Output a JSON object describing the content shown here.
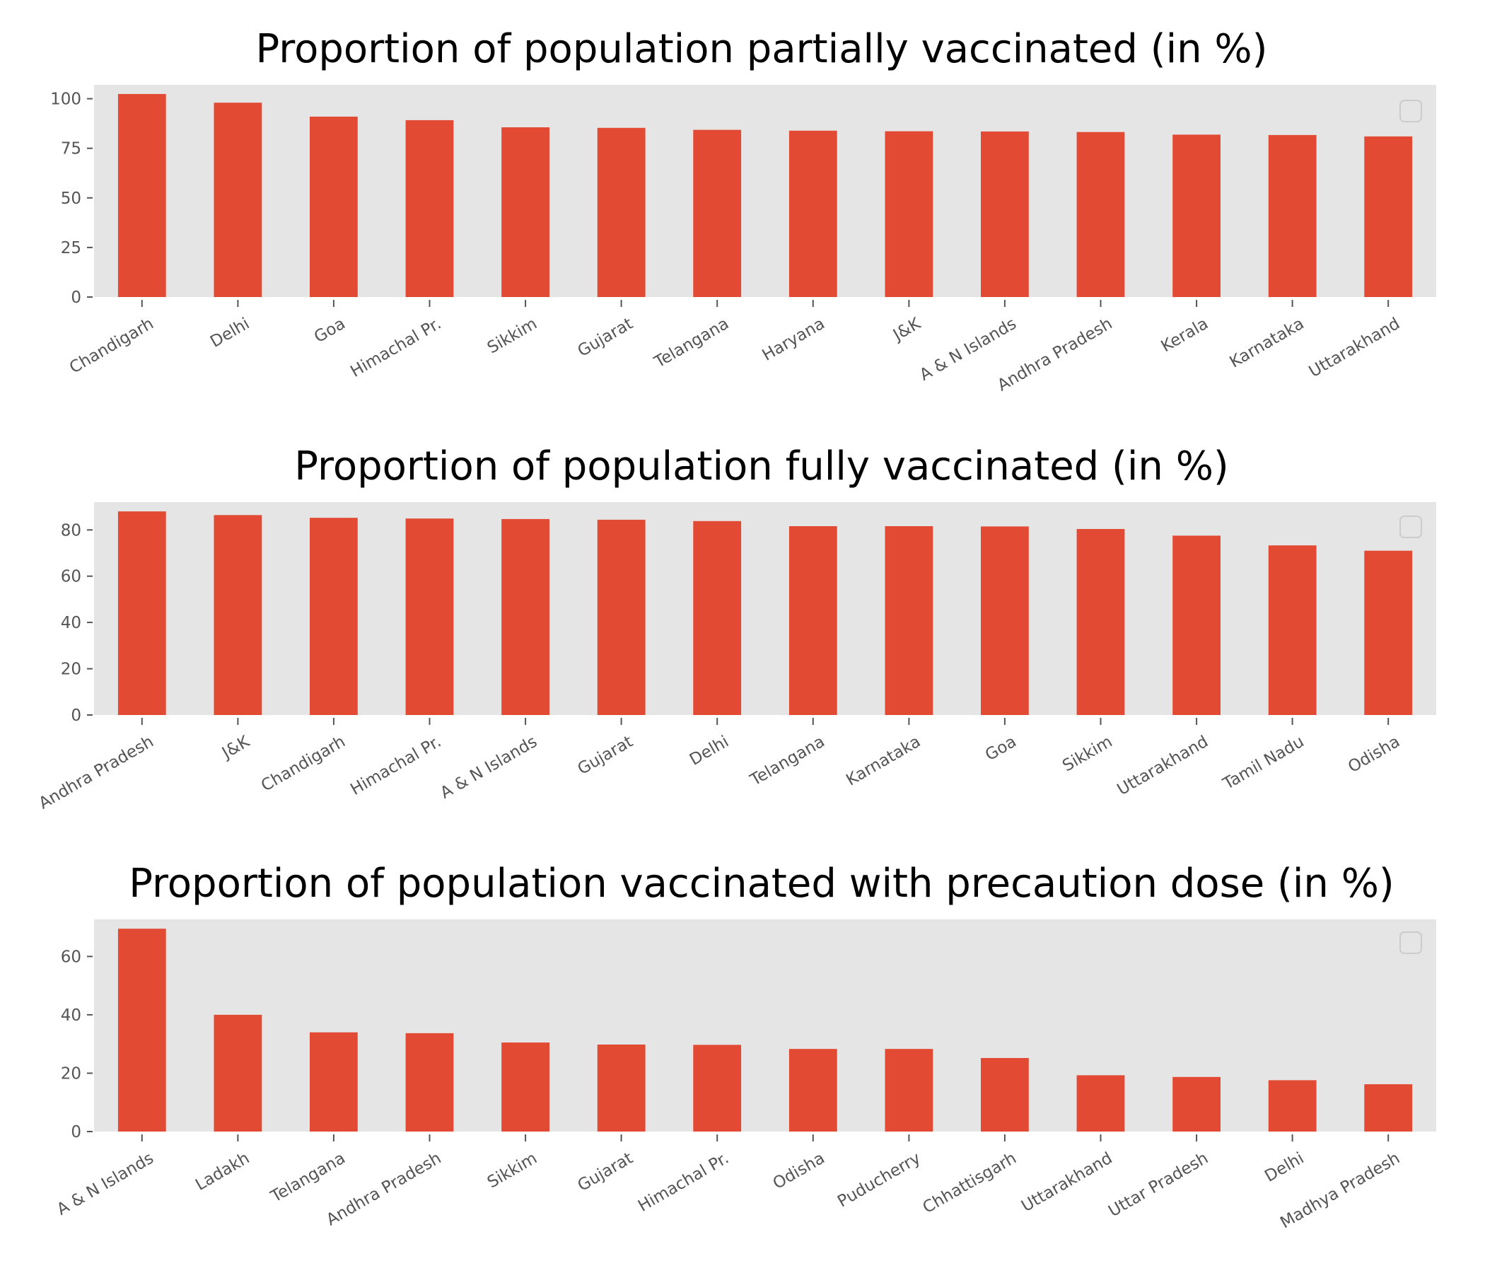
{
  "colors": {
    "bar": "#E24A33",
    "plot_background": "#E5E5E5",
    "tick_text": "#555555",
    "title_text": "#000000"
  },
  "chart_data": [
    {
      "type": "bar",
      "title": "Proportion of population partially vaccinated (in %)",
      "xlabel": "",
      "ylabel": "",
      "ylim": [
        0,
        107
      ],
      "yticks": [
        0,
        25,
        50,
        75,
        100
      ],
      "grid": false,
      "legend": "top-right (empty)",
      "categories": [
        "Chandigarh",
        "Delhi",
        "Goa",
        "Himachal Pr.",
        "Sikkim",
        "Gujarat",
        "Telangana",
        "Haryana",
        "J&K",
        "A & N Islands",
        "Andhra Pradesh",
        "Kerala",
        "Karnataka",
        "Uttarakhand"
      ],
      "values": [
        102.4,
        98.0,
        91.0,
        89.2,
        85.6,
        85.3,
        84.3,
        83.9,
        83.6,
        83.5,
        83.2,
        81.9,
        81.7,
        81.0
      ]
    },
    {
      "type": "bar",
      "title": "Proportion of population fully vaccinated (in %)",
      "xlabel": "",
      "ylabel": "",
      "ylim": [
        0,
        92
      ],
      "yticks": [
        0,
        20,
        40,
        60,
        80
      ],
      "grid": false,
      "legend": "top-right (empty)",
      "categories": [
        "Andhra Pradesh",
        "J&K",
        "Chandigarh",
        "Himachal Pr.",
        "A & N Islands",
        "Gujarat",
        "Delhi",
        "Telangana",
        "Karnataka",
        "Goa",
        "Sikkim",
        "Uttarakhand",
        "Tamil Nadu",
        "Odisha"
      ],
      "values": [
        88.0,
        86.4,
        85.2,
        84.9,
        84.7,
        84.4,
        83.8,
        81.6,
        81.6,
        81.5,
        80.4,
        77.5,
        73.3,
        71.0
      ]
    },
    {
      "type": "bar",
      "title": "Proportion of population vaccinated with precaution dose (in %)",
      "xlabel": "",
      "ylabel": "",
      "ylim": [
        0,
        72.7
      ],
      "yticks": [
        0,
        20,
        40,
        60
      ],
      "grid": false,
      "legend": "top-right (empty)",
      "categories": [
        "A & N Islands",
        "Ladakh",
        "Telangana",
        "Andhra Pradesh",
        "Sikkim",
        "Gujarat",
        "Himachal Pr.",
        "Odisha",
        "Puducherry",
        "Chhattisgarh",
        "Uttarakhand",
        "Uttar Pradesh",
        "Delhi",
        "Madhya Pradesh"
      ],
      "values": [
        69.5,
        40.0,
        34.0,
        33.7,
        30.5,
        29.8,
        29.7,
        28.3,
        28.3,
        25.2,
        19.3,
        18.7,
        17.6,
        16.2
      ]
    }
  ]
}
